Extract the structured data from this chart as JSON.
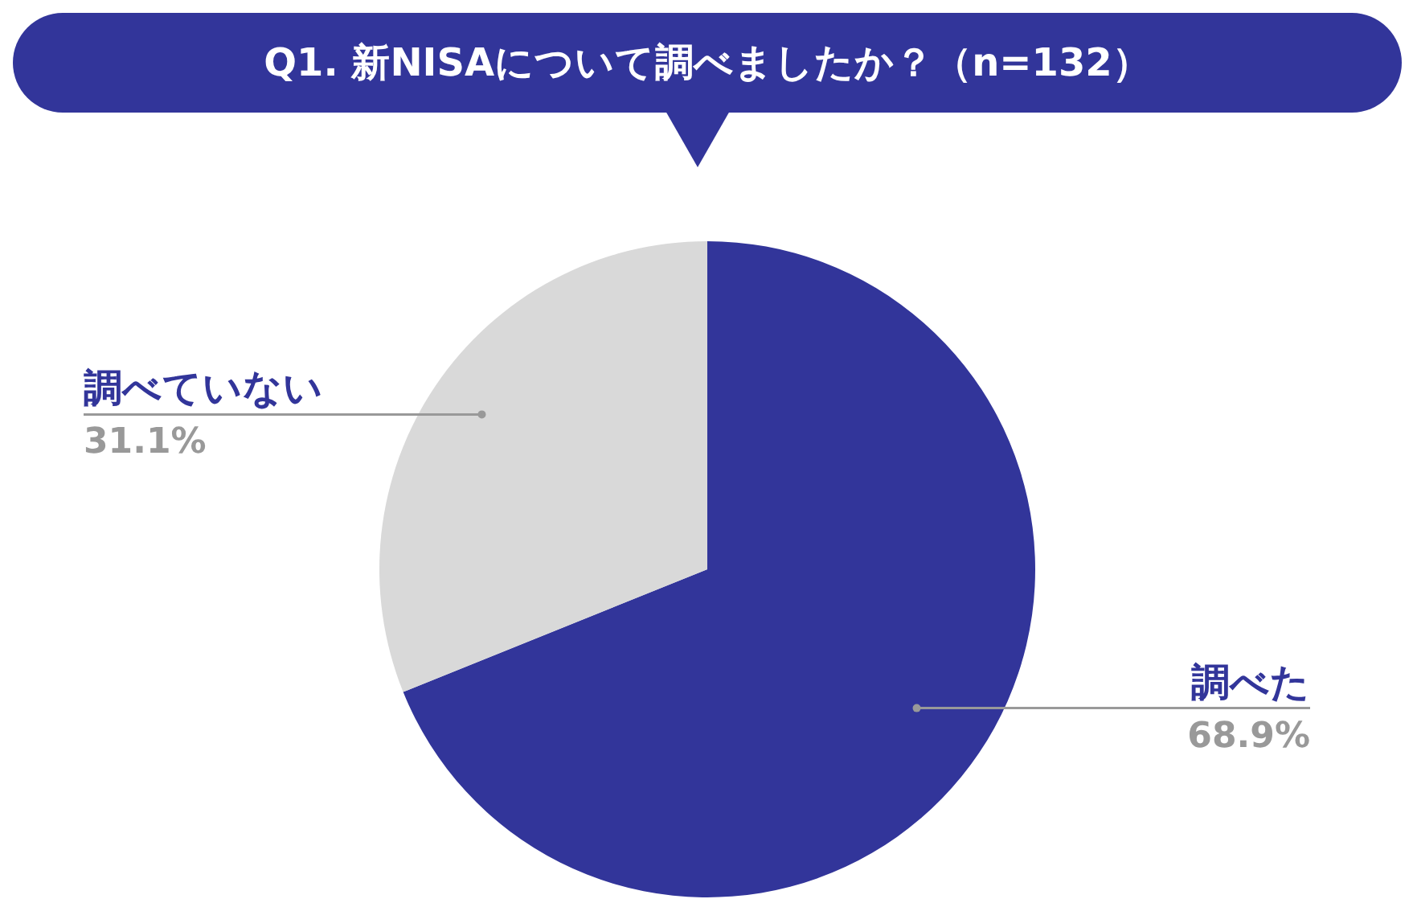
{
  "chart_data": {
    "type": "pie",
    "title": "Q1. 新NISAについて調べましたか？（n=132）",
    "categories": [
      "調べた",
      "調べていない"
    ],
    "values": [
      68.9,
      31.1
    ],
    "value_labels": [
      "68.9%",
      "31.1%"
    ],
    "colors": [
      "#32359a",
      "#d9d9d9"
    ]
  }
}
